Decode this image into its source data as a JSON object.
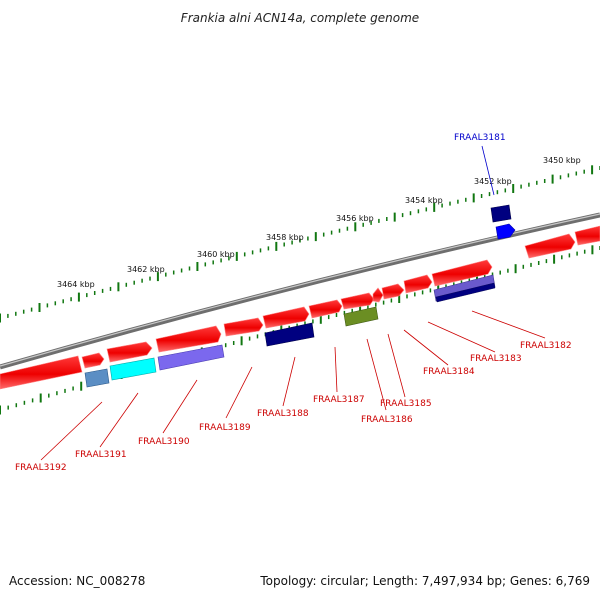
{
  "title": "Frankia alni ACN14a, complete genome",
  "accession": "Accession: NC_008278",
  "topology": "Topology: circular; Length: 7,497,934 bp; Genes: 6,769",
  "colors": {
    "forward_gene": "#ff0000",
    "backbone": "#7a7a7a",
    "ticks": "#117711",
    "label_red": "#cc0000",
    "label_blue": "#0000cc"
  },
  "scale_labels": [
    "3450 kbp",
    "3452 kbp",
    "3454 kbp",
    "3456 kbp",
    "3458 kbp",
    "3460 kbp",
    "3462 kbp",
    "3464 kbp"
  ],
  "gene_labels": [
    {
      "text": "FRAAL3181",
      "color": "blue"
    },
    {
      "text": "FRAAL3182",
      "color": "red"
    },
    {
      "text": "FRAAL3183",
      "color": "red"
    },
    {
      "text": "FRAAL3184",
      "color": "red"
    },
    {
      "text": "FRAAL3185",
      "color": "red"
    },
    {
      "text": "FRAAL3186",
      "color": "red"
    },
    {
      "text": "FRAAL3187",
      "color": "red"
    },
    {
      "text": "FRAAL3188",
      "color": "red"
    },
    {
      "text": "FRAAL3189",
      "color": "red"
    },
    {
      "text": "FRAAL3190",
      "color": "red"
    },
    {
      "text": "FRAAL3191",
      "color": "red"
    },
    {
      "text": "FRAAL3192",
      "color": "red"
    }
  ],
  "reverse_strand_colors": [
    "#5b8ec4",
    "#00ffff",
    "#7b68ee",
    "#000080",
    "#6b8e23",
    "#6a5acd",
    "#0000ff"
  ]
}
